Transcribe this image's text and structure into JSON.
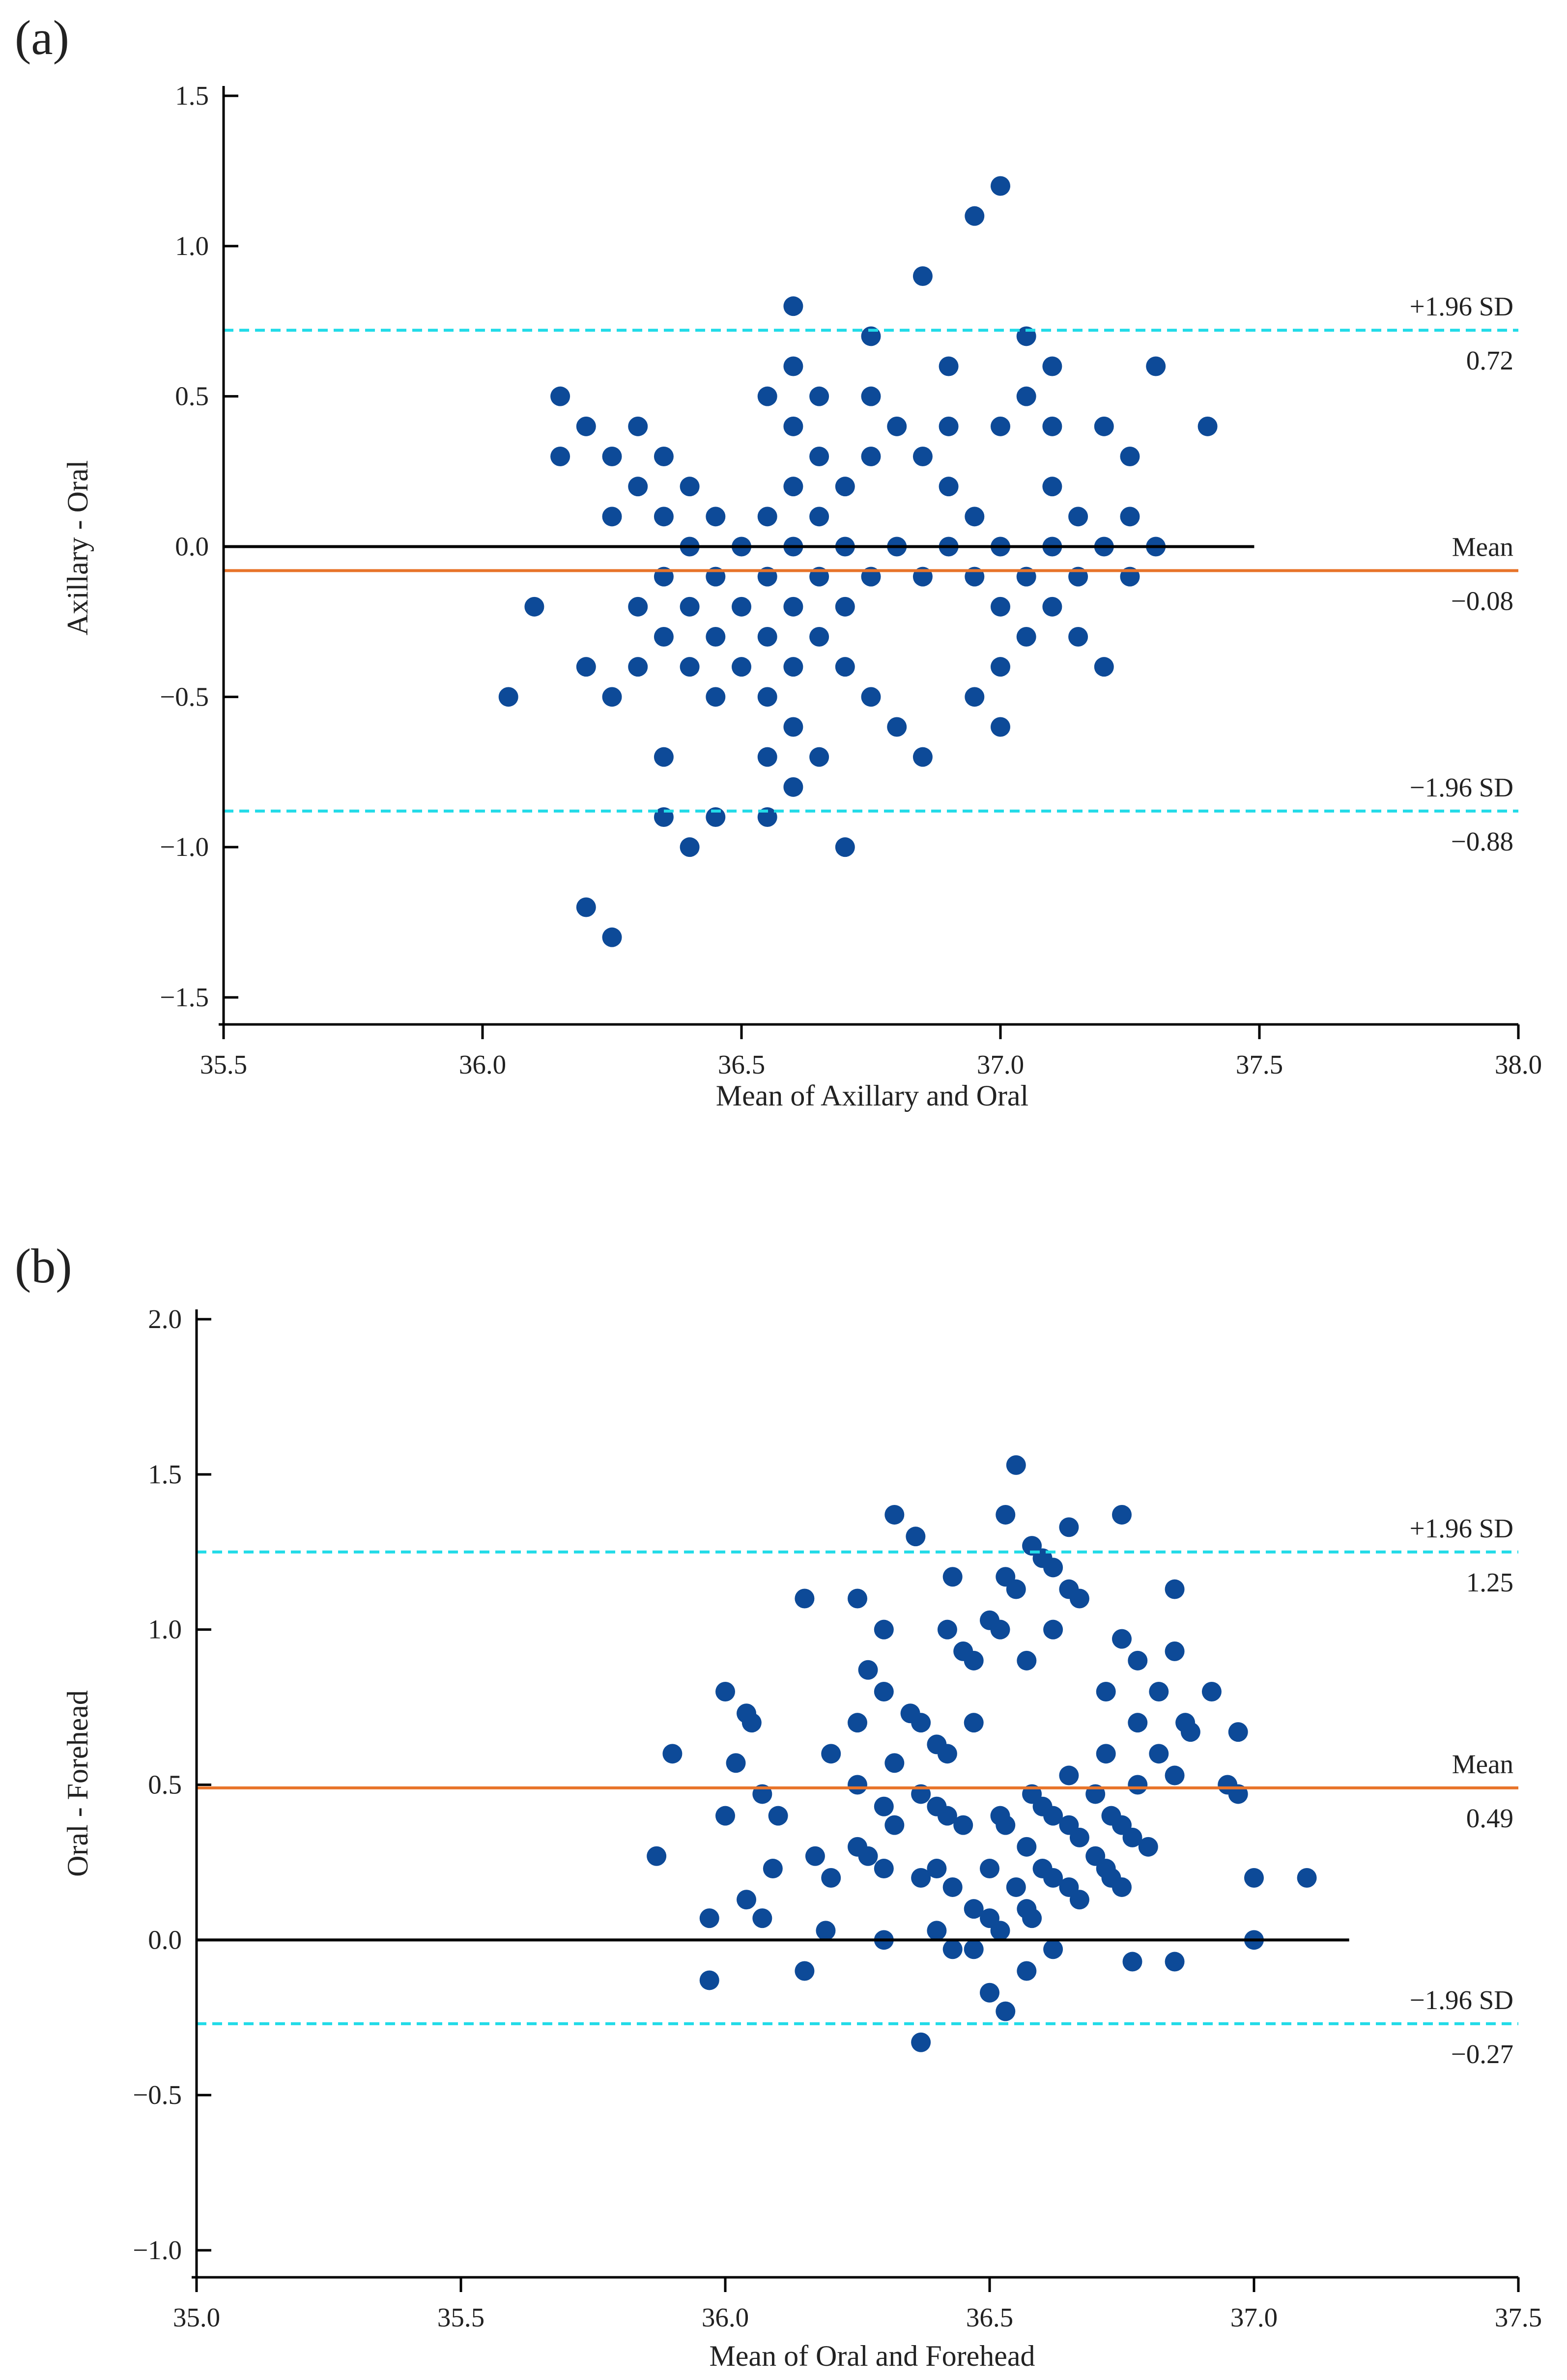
{
  "chart_data": [
    {
      "panel_label": "(a)",
      "type": "scatter",
      "title": "",
      "xlabel": "Mean of Axillary and Oral",
      "ylabel": "Axillary - Oral",
      "xlim": [
        35.5,
        38.0
      ],
      "ylim": [
        -1.5,
        1.5
      ],
      "xticks": [
        "35.5",
        "36.0",
        "36.5",
        "37.0",
        "37.5",
        "38.0"
      ],
      "yticks": [
        "1.5",
        "1.0",
        "0.5",
        "0.0",
        "−0.5",
        "−1.0",
        "−1.5"
      ],
      "zero_line_xmax": 37.49,
      "reference_lines": [
        {
          "name": "+1.96 SD",
          "label": "+1.96 SD",
          "value": 0.72,
          "value_label": "0.72",
          "style": "dashed",
          "color": "#22dbe8"
        },
        {
          "name": "Mean",
          "label": "Mean",
          "value": -0.08,
          "value_label": "−0.08",
          "style": "solid",
          "color": "#e8742a"
        },
        {
          "name": "-1.96 SD",
          "label": "−1.96 SD",
          "value": -0.88,
          "value_label": "−0.88",
          "style": "dashed",
          "color": "#22dbe8"
        }
      ],
      "points": [
        [
          36.05,
          -0.5
        ],
        [
          36.1,
          -0.2
        ],
        [
          36.15,
          0.5
        ],
        [
          36.15,
          0.3
        ],
        [
          36.2,
          0.4
        ],
        [
          36.2,
          -0.4
        ],
        [
          36.2,
          -1.2
        ],
        [
          36.25,
          0.3
        ],
        [
          36.25,
          0.1
        ],
        [
          36.25,
          -0.5
        ],
        [
          36.25,
          -1.3
        ],
        [
          36.3,
          0.4
        ],
        [
          36.3,
          0.2
        ],
        [
          36.3,
          -0.2
        ],
        [
          36.3,
          -0.4
        ],
        [
          36.35,
          0.3
        ],
        [
          36.35,
          0.1
        ],
        [
          36.35,
          -0.1
        ],
        [
          36.35,
          -0.3
        ],
        [
          36.35,
          -0.7
        ],
        [
          36.35,
          -0.9
        ],
        [
          36.4,
          0.2
        ],
        [
          36.4,
          0.0
        ],
        [
          36.4,
          -0.2
        ],
        [
          36.4,
          -0.4
        ],
        [
          36.4,
          -1.0
        ],
        [
          36.45,
          0.1
        ],
        [
          36.45,
          -0.1
        ],
        [
          36.45,
          -0.3
        ],
        [
          36.45,
          -0.5
        ],
        [
          36.45,
          -0.9
        ],
        [
          36.5,
          0.0
        ],
        [
          36.5,
          -0.2
        ],
        [
          36.5,
          -0.4
        ],
        [
          36.55,
          0.5
        ],
        [
          36.55,
          0.1
        ],
        [
          36.55,
          -0.1
        ],
        [
          36.55,
          -0.3
        ],
        [
          36.55,
          -0.5
        ],
        [
          36.55,
          -0.7
        ],
        [
          36.55,
          -0.9
        ],
        [
          36.6,
          0.8
        ],
        [
          36.6,
          0.6
        ],
        [
          36.6,
          0.4
        ],
        [
          36.6,
          0.2
        ],
        [
          36.6,
          0.0
        ],
        [
          36.6,
          -0.2
        ],
        [
          36.6,
          -0.4
        ],
        [
          36.6,
          -0.6
        ],
        [
          36.6,
          -0.8
        ],
        [
          36.65,
          0.5
        ],
        [
          36.65,
          0.3
        ],
        [
          36.65,
          0.1
        ],
        [
          36.65,
          -0.1
        ],
        [
          36.65,
          -0.3
        ],
        [
          36.65,
          -0.7
        ],
        [
          36.7,
          0.2
        ],
        [
          36.7,
          0.0
        ],
        [
          36.7,
          -0.2
        ],
        [
          36.7,
          -0.4
        ],
        [
          36.7,
          -1.0
        ],
        [
          36.75,
          0.7
        ],
        [
          36.75,
          0.5
        ],
        [
          36.75,
          0.3
        ],
        [
          36.75,
          -0.1
        ],
        [
          36.75,
          -0.5
        ],
        [
          36.8,
          0.4
        ],
        [
          36.8,
          0.0
        ],
        [
          36.8,
          -0.6
        ],
        [
          36.85,
          0.9
        ],
        [
          36.85,
          0.3
        ],
        [
          36.85,
          -0.1
        ],
        [
          36.85,
          -0.7
        ],
        [
          36.9,
          0.6
        ],
        [
          36.9,
          0.4
        ],
        [
          36.9,
          0.2
        ],
        [
          36.9,
          0.0
        ],
        [
          36.95,
          1.1
        ],
        [
          36.95,
          0.1
        ],
        [
          36.95,
          -0.1
        ],
        [
          36.95,
          -0.5
        ],
        [
          37.0,
          1.2
        ],
        [
          37.0,
          0.4
        ],
        [
          37.0,
          0.0
        ],
        [
          37.0,
          -0.2
        ],
        [
          37.0,
          -0.4
        ],
        [
          37.0,
          -0.6
        ],
        [
          37.05,
          0.7
        ],
        [
          37.05,
          0.5
        ],
        [
          37.05,
          -0.1
        ],
        [
          37.05,
          -0.3
        ],
        [
          37.1,
          0.6
        ],
        [
          37.1,
          0.4
        ],
        [
          37.1,
          0.2
        ],
        [
          37.1,
          0.0
        ],
        [
          37.1,
          -0.2
        ],
        [
          37.15,
          0.1
        ],
        [
          37.15,
          -0.1
        ],
        [
          37.15,
          -0.3
        ],
        [
          37.2,
          0.4
        ],
        [
          37.2,
          0.0
        ],
        [
          37.2,
          -0.4
        ],
        [
          37.25,
          0.3
        ],
        [
          37.25,
          0.1
        ],
        [
          37.25,
          -0.1
        ],
        [
          37.3,
          0.6
        ],
        [
          37.3,
          0.0
        ],
        [
          37.4,
          0.4
        ]
      ]
    },
    {
      "panel_label": "(b)",
      "type": "scatter",
      "title": "",
      "xlabel": "Mean of Oral and Forehead",
      "ylabel": "Oral - Forehead",
      "xlim": [
        35.0,
        37.5
      ],
      "ylim": [
        -1.0,
        2.0
      ],
      "xticks": [
        "35.0",
        "35.5",
        "36.0",
        "36.5",
        "37.0",
        "37.5"
      ],
      "yticks": [
        "2.0",
        "1.5",
        "1.0",
        "0.5",
        "0.0",
        "−0.5",
        "−1.0"
      ],
      "zero_line_xmax": 37.18,
      "reference_lines": [
        {
          "name": "+1.96 SD",
          "label": "+1.96 SD",
          "value": 1.25,
          "value_label": "1.25",
          "style": "dashed",
          "color": "#22dbe8"
        },
        {
          "name": "Mean",
          "label": "Mean",
          "value": 0.49,
          "value_label": "0.49",
          "style": "solid",
          "color": "#e8742a"
        },
        {
          "name": "-1.96 SD",
          "label": "−1.96 SD",
          "value": -0.27,
          "value_label": "−0.27",
          "style": "dashed",
          "color": "#22dbe8"
        }
      ],
      "points": [
        [
          35.87,
          0.27
        ],
        [
          35.9,
          0.6
        ],
        [
          35.97,
          0.07
        ],
        [
          35.97,
          -0.13
        ],
        [
          36.0,
          0.8
        ],
        [
          36.0,
          0.4
        ],
        [
          36.02,
          0.57
        ],
        [
          36.04,
          0.73
        ],
        [
          36.04,
          0.13
        ],
        [
          36.05,
          0.7
        ],
        [
          36.07,
          0.47
        ],
        [
          36.07,
          0.07
        ],
        [
          36.09,
          0.23
        ],
        [
          36.1,
          0.4
        ],
        [
          36.15,
          1.1
        ],
        [
          36.15,
          -0.1
        ],
        [
          36.17,
          0.27
        ],
        [
          36.19,
          0.03
        ],
        [
          36.2,
          0.6
        ],
        [
          36.2,
          0.2
        ],
        [
          36.25,
          1.1
        ],
        [
          36.25,
          0.7
        ],
        [
          36.25,
          0.5
        ],
        [
          36.25,
          0.3
        ],
        [
          36.27,
          0.87
        ],
        [
          36.27,
          0.27
        ],
        [
          36.3,
          1.0
        ],
        [
          36.3,
          0.8
        ],
        [
          36.3,
          0.43
        ],
        [
          36.3,
          0.23
        ],
        [
          36.3,
          0.0
        ],
        [
          36.32,
          1.37
        ],
        [
          36.32,
          0.57
        ],
        [
          36.32,
          0.37
        ],
        [
          36.35,
          0.73
        ],
        [
          36.36,
          1.3
        ],
        [
          36.37,
          0.7
        ],
        [
          36.37,
          0.47
        ],
        [
          36.37,
          0.2
        ],
        [
          36.37,
          -0.33
        ],
        [
          36.4,
          0.63
        ],
        [
          36.4,
          0.43
        ],
        [
          36.4,
          0.23
        ],
        [
          36.4,
          0.03
        ],
        [
          36.42,
          1.0
        ],
        [
          36.42,
          0.6
        ],
        [
          36.42,
          0.4
        ],
        [
          36.43,
          1.17
        ],
        [
          36.43,
          0.17
        ],
        [
          36.43,
          -0.03
        ],
        [
          36.45,
          0.93
        ],
        [
          36.45,
          0.37
        ],
        [
          36.47,
          0.9
        ],
        [
          36.47,
          0.7
        ],
        [
          36.47,
          0.1
        ],
        [
          36.47,
          -0.03
        ],
        [
          36.5,
          1.03
        ],
        [
          36.5,
          0.23
        ],
        [
          36.5,
          0.07
        ],
        [
          36.5,
          -0.17
        ],
        [
          36.52,
          1.0
        ],
        [
          36.52,
          0.4
        ],
        [
          36.52,
          0.03
        ],
        [
          36.53,
          1.37
        ],
        [
          36.53,
          1.17
        ],
        [
          36.53,
          0.37
        ],
        [
          36.53,
          -0.23
        ],
        [
          36.55,
          1.53
        ],
        [
          36.55,
          1.13
        ],
        [
          36.55,
          0.17
        ],
        [
          36.57,
          0.9
        ],
        [
          36.57,
          0.3
        ],
        [
          36.57,
          0.1
        ],
        [
          36.57,
          -0.1
        ],
        [
          36.58,
          1.27
        ],
        [
          36.58,
          0.47
        ],
        [
          36.58,
          0.07
        ],
        [
          36.6,
          1.23
        ],
        [
          36.6,
          0.43
        ],
        [
          36.6,
          0.23
        ],
        [
          36.62,
          1.2
        ],
        [
          36.62,
          1.0
        ],
        [
          36.62,
          0.4
        ],
        [
          36.62,
          0.2
        ],
        [
          36.62,
          -0.03
        ],
        [
          36.65,
          1.33
        ],
        [
          36.65,
          1.13
        ],
        [
          36.65,
          0.53
        ],
        [
          36.65,
          0.37
        ],
        [
          36.65,
          0.17
        ],
        [
          36.67,
          1.1
        ],
        [
          36.67,
          0.33
        ],
        [
          36.67,
          0.13
        ],
        [
          36.7,
          0.47
        ],
        [
          36.7,
          0.27
        ],
        [
          36.72,
          0.8
        ],
        [
          36.72,
          0.6
        ],
        [
          36.72,
          0.23
        ],
        [
          36.73,
          0.4
        ],
        [
          36.73,
          0.2
        ],
        [
          36.75,
          1.37
        ],
        [
          36.75,
          0.97
        ],
        [
          36.75,
          0.37
        ],
        [
          36.75,
          0.17
        ],
        [
          36.77,
          0.33
        ],
        [
          36.77,
          -0.07
        ],
        [
          36.78,
          0.9
        ],
        [
          36.78,
          0.7
        ],
        [
          36.78,
          0.5
        ],
        [
          36.8,
          0.3
        ],
        [
          36.82,
          0.8
        ],
        [
          36.82,
          0.6
        ],
        [
          36.85,
          0.53
        ],
        [
          36.85,
          1.13
        ],
        [
          36.85,
          0.93
        ],
        [
          36.85,
          -0.07
        ],
        [
          36.87,
          0.7
        ],
        [
          36.88,
          0.67
        ],
        [
          36.92,
          0.8
        ],
        [
          36.95,
          0.5
        ],
        [
          36.97,
          0.67
        ],
        [
          36.97,
          0.47
        ],
        [
          37.0,
          0.2
        ],
        [
          37.0,
          0.0
        ],
        [
          37.1,
          0.2
        ]
      ]
    }
  ]
}
